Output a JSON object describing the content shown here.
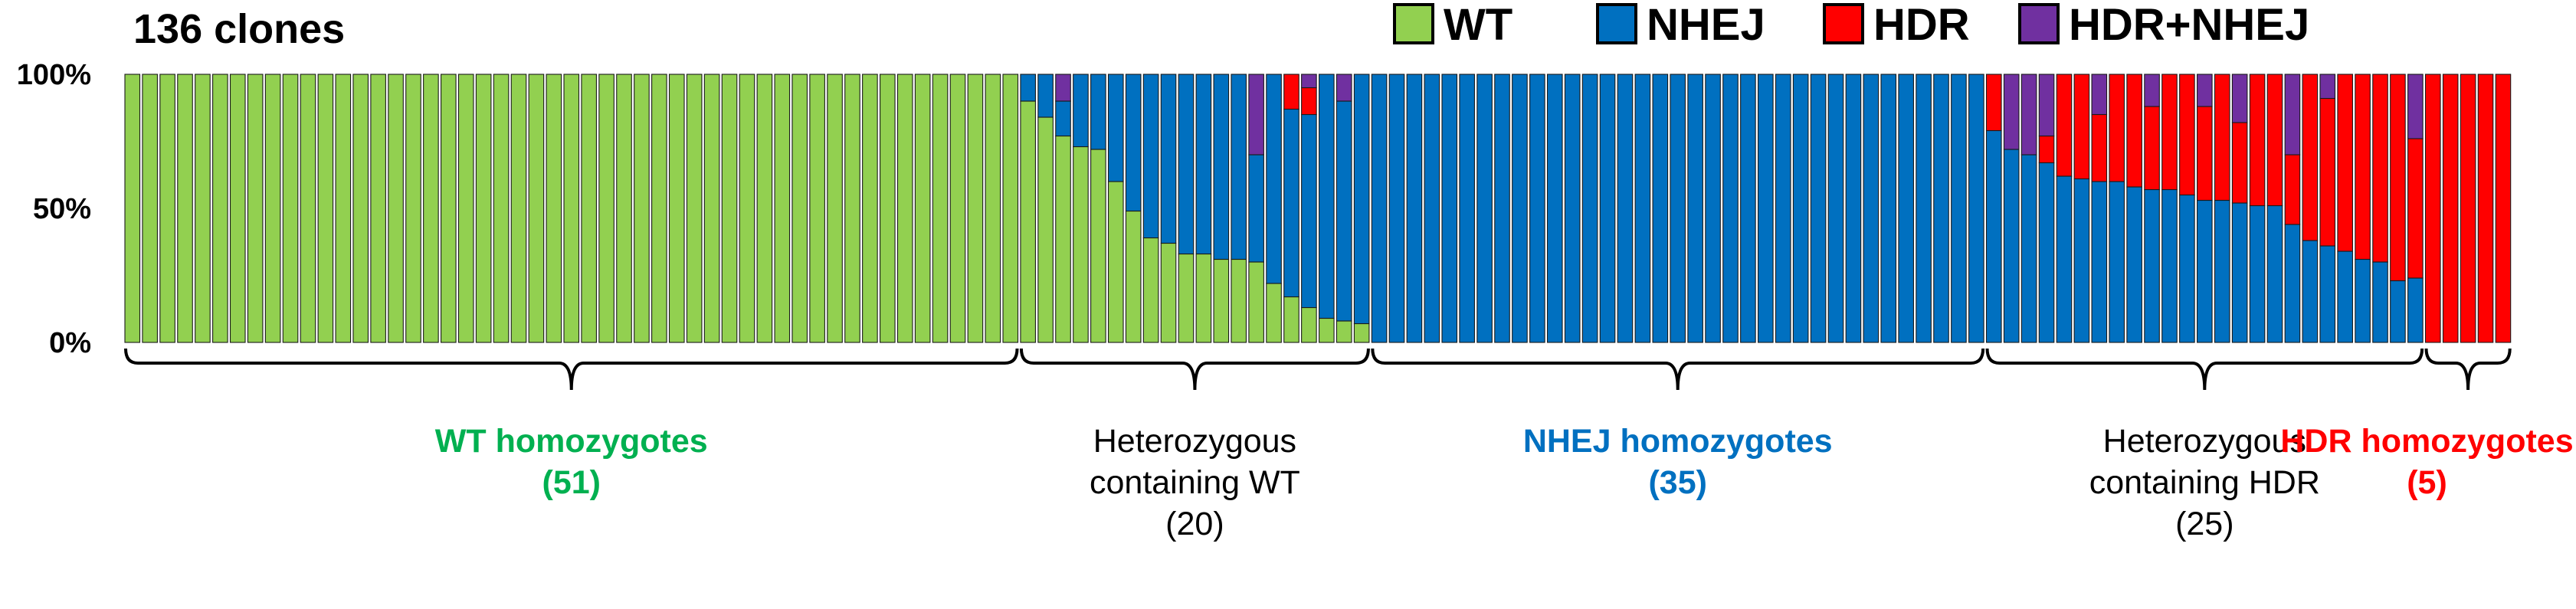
{
  "chart_data": {
    "type": "bar",
    "stacked": true,
    "title": "136 clones",
    "ylim": [
      0,
      100
    ],
    "y_ticks": [
      "0%",
      "50%",
      "100%"
    ],
    "legend": [
      {
        "name": "WT",
        "color": "#92d050"
      },
      {
        "name": "NHEJ",
        "color": "#0070c0"
      },
      {
        "name": "HDR",
        "color": "#ff0000"
      },
      {
        "name": "HDR+NHEJ",
        "color": "#7030a0"
      }
    ],
    "legend_position": "top-right",
    "series_order": [
      "WT",
      "NHEJ",
      "HDR",
      "HDR+NHEJ"
    ],
    "clones": [
      [
        100,
        0,
        0,
        0
      ],
      [
        100,
        0,
        0,
        0
      ],
      [
        100,
        0,
        0,
        0
      ],
      [
        100,
        0,
        0,
        0
      ],
      [
        100,
        0,
        0,
        0
      ],
      [
        100,
        0,
        0,
        0
      ],
      [
        100,
        0,
        0,
        0
      ],
      [
        100,
        0,
        0,
        0
      ],
      [
        100,
        0,
        0,
        0
      ],
      [
        100,
        0,
        0,
        0
      ],
      [
        100,
        0,
        0,
        0
      ],
      [
        100,
        0,
        0,
        0
      ],
      [
        100,
        0,
        0,
        0
      ],
      [
        100,
        0,
        0,
        0
      ],
      [
        100,
        0,
        0,
        0
      ],
      [
        100,
        0,
        0,
        0
      ],
      [
        100,
        0,
        0,
        0
      ],
      [
        100,
        0,
        0,
        0
      ],
      [
        100,
        0,
        0,
        0
      ],
      [
        100,
        0,
        0,
        0
      ],
      [
        100,
        0,
        0,
        0
      ],
      [
        100,
        0,
        0,
        0
      ],
      [
        100,
        0,
        0,
        0
      ],
      [
        100,
        0,
        0,
        0
      ],
      [
        100,
        0,
        0,
        0
      ],
      [
        100,
        0,
        0,
        0
      ],
      [
        100,
        0,
        0,
        0
      ],
      [
        100,
        0,
        0,
        0
      ],
      [
        100,
        0,
        0,
        0
      ],
      [
        100,
        0,
        0,
        0
      ],
      [
        100,
        0,
        0,
        0
      ],
      [
        100,
        0,
        0,
        0
      ],
      [
        100,
        0,
        0,
        0
      ],
      [
        100,
        0,
        0,
        0
      ],
      [
        100,
        0,
        0,
        0
      ],
      [
        100,
        0,
        0,
        0
      ],
      [
        100,
        0,
        0,
        0
      ],
      [
        100,
        0,
        0,
        0
      ],
      [
        100,
        0,
        0,
        0
      ],
      [
        100,
        0,
        0,
        0
      ],
      [
        100,
        0,
        0,
        0
      ],
      [
        100,
        0,
        0,
        0
      ],
      [
        100,
        0,
        0,
        0
      ],
      [
        100,
        0,
        0,
        0
      ],
      [
        100,
        0,
        0,
        0
      ],
      [
        100,
        0,
        0,
        0
      ],
      [
        100,
        0,
        0,
        0
      ],
      [
        100,
        0,
        0,
        0
      ],
      [
        100,
        0,
        0,
        0
      ],
      [
        100,
        0,
        0,
        0
      ],
      [
        100,
        0,
        0,
        0
      ],
      [
        90,
        10,
        0,
        0
      ],
      [
        84,
        16,
        0,
        0
      ],
      [
        77,
        13,
        0,
        10
      ],
      [
        73,
        27,
        0,
        0
      ],
      [
        72,
        28,
        0,
        0
      ],
      [
        60,
        40,
        0,
        0
      ],
      [
        49,
        51,
        0,
        0
      ],
      [
        39,
        61,
        0,
        0
      ],
      [
        37,
        63,
        0,
        0
      ],
      [
        33,
        67,
        0,
        0
      ],
      [
        33,
        67,
        0,
        0
      ],
      [
        31,
        69,
        0,
        0
      ],
      [
        31,
        69,
        0,
        0
      ],
      [
        30,
        40,
        0,
        30
      ],
      [
        22,
        78,
        0,
        0
      ],
      [
        17,
        70,
        13,
        0
      ],
      [
        13,
        72,
        10,
        5
      ],
      [
        9,
        91,
        0,
        0
      ],
      [
        8,
        82,
        0,
        10
      ],
      [
        7,
        93,
        0,
        0
      ],
      [
        0,
        100,
        0,
        0
      ],
      [
        0,
        100,
        0,
        0
      ],
      [
        0,
        100,
        0,
        0
      ],
      [
        0,
        100,
        0,
        0
      ],
      [
        0,
        100,
        0,
        0
      ],
      [
        0,
        100,
        0,
        0
      ],
      [
        0,
        100,
        0,
        0
      ],
      [
        0,
        100,
        0,
        0
      ],
      [
        0,
        100,
        0,
        0
      ],
      [
        0,
        100,
        0,
        0
      ],
      [
        0,
        100,
        0,
        0
      ],
      [
        0,
        100,
        0,
        0
      ],
      [
        0,
        100,
        0,
        0
      ],
      [
        0,
        100,
        0,
        0
      ],
      [
        0,
        100,
        0,
        0
      ],
      [
        0,
        100,
        0,
        0
      ],
      [
        0,
        100,
        0,
        0
      ],
      [
        0,
        100,
        0,
        0
      ],
      [
        0,
        100,
        0,
        0
      ],
      [
        0,
        100,
        0,
        0
      ],
      [
        0,
        100,
        0,
        0
      ],
      [
        0,
        100,
        0,
        0
      ],
      [
        0,
        100,
        0,
        0
      ],
      [
        0,
        100,
        0,
        0
      ],
      [
        0,
        100,
        0,
        0
      ],
      [
        0,
        100,
        0,
        0
      ],
      [
        0,
        100,
        0,
        0
      ],
      [
        0,
        100,
        0,
        0
      ],
      [
        0,
        100,
        0,
        0
      ],
      [
        0,
        100,
        0,
        0
      ],
      [
        0,
        100,
        0,
        0
      ],
      [
        0,
        100,
        0,
        0
      ],
      [
        0,
        100,
        0,
        0
      ],
      [
        0,
        100,
        0,
        0
      ],
      [
        0,
        100,
        0,
        0
      ],
      [
        0,
        79,
        21,
        0
      ],
      [
        0,
        72,
        0,
        28
      ],
      [
        0,
        70,
        0,
        30
      ],
      [
        0,
        67,
        10,
        23
      ],
      [
        0,
        62,
        38,
        0
      ],
      [
        0,
        61,
        39,
        0
      ],
      [
        0,
        60,
        25,
        15
      ],
      [
        0,
        60,
        40,
        0
      ],
      [
        0,
        58,
        42,
        0
      ],
      [
        0,
        57,
        31,
        12
      ],
      [
        0,
        57,
        43,
        0
      ],
      [
        0,
        55,
        45,
        0
      ],
      [
        0,
        53,
        35,
        12
      ],
      [
        0,
        53,
        47,
        0
      ],
      [
        0,
        52,
        30,
        18
      ],
      [
        0,
        51,
        49,
        0
      ],
      [
        0,
        51,
        49,
        0
      ],
      [
        0,
        44,
        26,
        30
      ],
      [
        0,
        38,
        62,
        0
      ],
      [
        0,
        36,
        55,
        9
      ],
      [
        0,
        34,
        66,
        0
      ],
      [
        0,
        31,
        69,
        0
      ],
      [
        0,
        30,
        70,
        0
      ],
      [
        0,
        23,
        77,
        0
      ],
      [
        0,
        24,
        52,
        24
      ],
      [
        0,
        0,
        100,
        0
      ],
      [
        0,
        0,
        100,
        0
      ],
      [
        0,
        0,
        100,
        0
      ],
      [
        0,
        0,
        100,
        0
      ],
      [
        0,
        0,
        100,
        0
      ]
    ],
    "groups": [
      {
        "lines": [
          "WT homozygotes",
          "(51)"
        ],
        "color": "#00b050",
        "bold": true
      },
      {
        "lines": [
          "Heterozygous",
          "containing WT",
          "(20)"
        ],
        "color": "#000000",
        "bold": false
      },
      {
        "lines": [
          "NHEJ homozygotes",
          "(35)"
        ],
        "color": "#0070c0",
        "bold": true
      },
      {
        "lines": [
          "Heterozygous",
          "containing HDR",
          "(25)"
        ],
        "color": "#000000",
        "bold": false
      },
      {
        "lines": [
          "HDR homozygotes",
          "(5)"
        ],
        "color": "#ff0000",
        "bold": true
      }
    ]
  }
}
